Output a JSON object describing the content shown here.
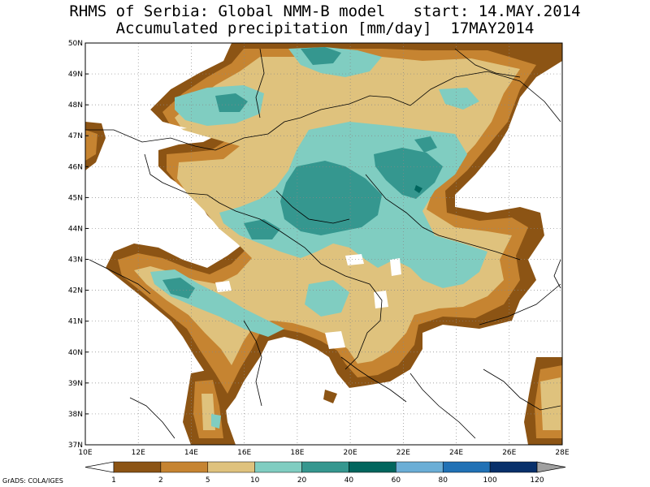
{
  "header": {
    "title_line1": "RHMS of Serbia: Global NMM-B model   start: 14.MAY.2014",
    "title_line2": "Accumulated precipitation [mm/day]  17MAY2014"
  },
  "map": {
    "lon_range": [
      10,
      28
    ],
    "lat_range": [
      37,
      50
    ],
    "lat_ticks": [
      "37N",
      "38N",
      "39N",
      "40N",
      "41N",
      "42N",
      "43N",
      "44N",
      "45N",
      "46N",
      "47N",
      "48N",
      "49N",
      "50N"
    ],
    "lon_ticks": [
      "10E",
      "12E",
      "14E",
      "16E",
      "18E",
      "20E",
      "22E",
      "24E",
      "26E",
      "28E"
    ],
    "grid": true,
    "variable": "accumulated precipitation",
    "units": "mm/day"
  },
  "colorbar": {
    "levels": [
      "1",
      "2",
      "5",
      "10",
      "20",
      "40",
      "60",
      "80",
      "100",
      "120"
    ],
    "colors": [
      "#8c5414",
      "#c68431",
      "#dfc27d",
      "#80cdc1",
      "#35978f",
      "#01665e",
      "#6baed6",
      "#2171b5",
      "#08306b"
    ],
    "under_color": "#ffffff",
    "over_color": "#a0a0a0"
  },
  "credit": "GrADS: COLA/IGES"
}
